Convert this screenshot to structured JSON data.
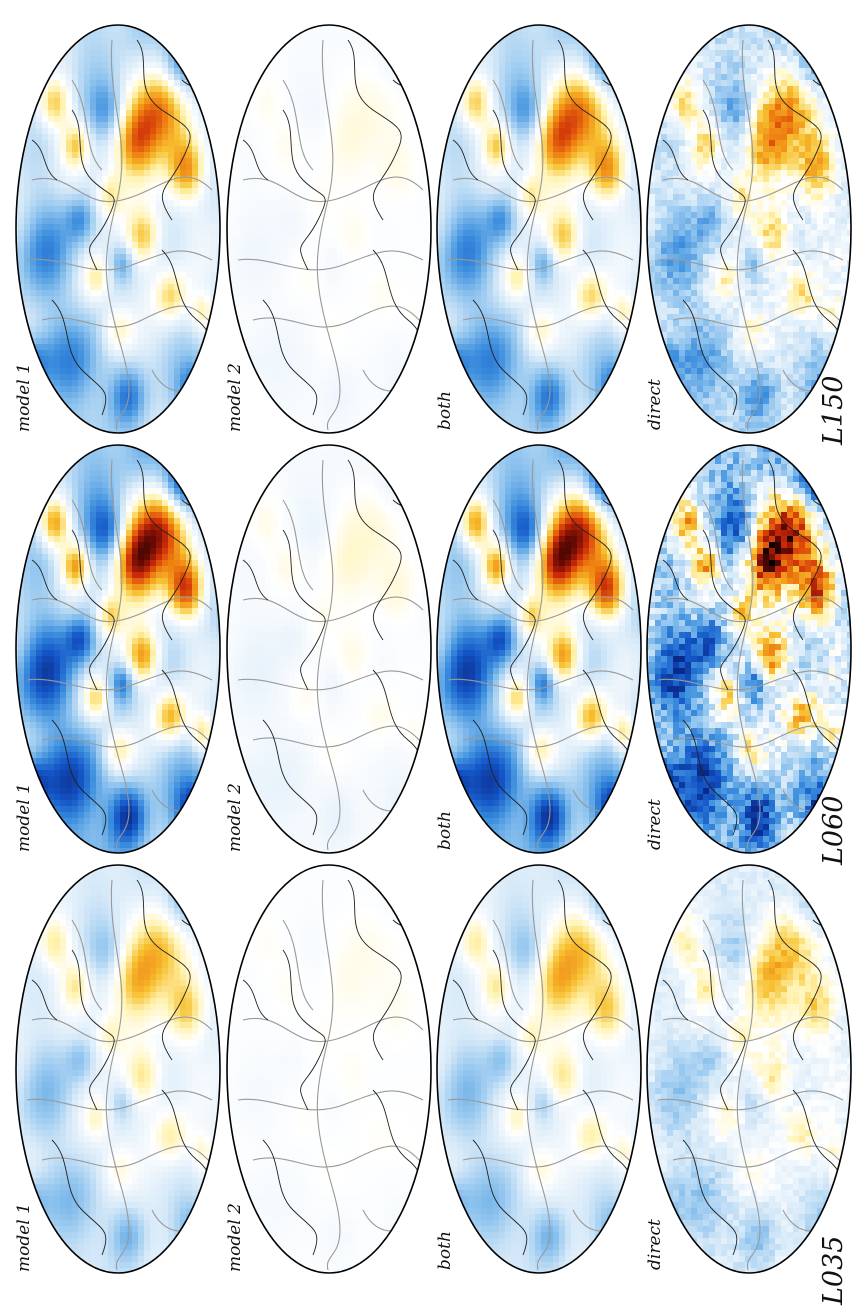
{
  "figure": {
    "rows": [
      {
        "id": "l035",
        "label": "L035",
        "panels": [
          {
            "id": "model1",
            "label": "model 1",
            "amplitude": 1.0,
            "texture": 0
          },
          {
            "id": "model2",
            "label": "model 2",
            "amplitude": 0.12,
            "texture": 0
          },
          {
            "id": "both",
            "label": "both",
            "amplitude": 1.0,
            "texture": 0
          },
          {
            "id": "direct",
            "label": "direct",
            "amplitude": 1.0,
            "texture": 0.35
          }
        ]
      },
      {
        "id": "l060",
        "label": "L060",
        "panels": [
          {
            "id": "model1",
            "label": "model 1",
            "amplitude": 0.72,
            "texture": 0
          },
          {
            "id": "model2",
            "label": "model 2",
            "amplitude": 0.08,
            "texture": 0
          },
          {
            "id": "both",
            "label": "both",
            "amplitude": 0.72,
            "texture": 0
          },
          {
            "id": "direct",
            "label": "direct",
            "amplitude": 0.62,
            "texture": 0.3
          }
        ]
      },
      {
        "id": "l150",
        "label": "L150",
        "panels": [
          {
            "id": "model1",
            "label": "model 1",
            "amplitude": 0.48,
            "texture": 0
          },
          {
            "id": "model2",
            "label": "model 2",
            "amplitude": 0.05,
            "texture": 0
          },
          {
            "id": "both",
            "label": "both",
            "amplitude": 0.48,
            "texture": 0
          },
          {
            "id": "direct",
            "label": "direct",
            "amplitude": 0.42,
            "texture": 0.3
          }
        ]
      }
    ],
    "colormap": {
      "fast": [
        "#ffffff",
        "#d6e9f8",
        "#8ec3ee",
        "#3d8fde",
        "#1457c8",
        "#0a2a8a"
      ],
      "slow": [
        "#ffffff",
        "#fff3b0",
        "#f7c030",
        "#ee7d10",
        "#cc2a08",
        "#6a0a04",
        "#000000"
      ]
    },
    "outline_colors": {
      "coast": "#222222",
      "plate_boundary": "#999999",
      "frame": "#000000"
    }
  }
}
